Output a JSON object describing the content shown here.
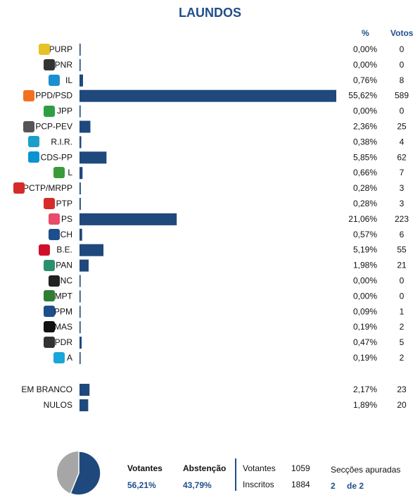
{
  "title": "LAUNDOS",
  "headers": {
    "pct": "%",
    "votes": "Votos"
  },
  "colors": {
    "bar": "#1f497d",
    "title": "#1f4e8c",
    "pie_votantes": "#1f497d",
    "pie_abstencao": "#a6a6a6"
  },
  "chart_data": {
    "type": "bar",
    "orientation": "horizontal",
    "categories": [
      "PURP",
      "PNR",
      "IL",
      "PPD/PSD",
      "JPP",
      "PCP-PEV",
      "R.I.R.",
      "CDS-PP",
      "L",
      "PCTP/MRPP",
      "PTP",
      "PS",
      "CH",
      "B.E.",
      "PAN",
      "NC",
      "MPT",
      "PPM",
      "MAS",
      "PDR",
      "A"
    ],
    "percent_labels": [
      "0,00%",
      "0,00%",
      "0,76%",
      "55,62%",
      "0,00%",
      "2,36%",
      "0,38%",
      "5,85%",
      "0,66%",
      "0,28%",
      "0,28%",
      "21,06%",
      "0,57%",
      "5,19%",
      "1,98%",
      "0,00%",
      "0,00%",
      "0,09%",
      "0,19%",
      "0,47%",
      "0,19%"
    ],
    "values": [
      0.0,
      0.0,
      0.76,
      55.62,
      0.0,
      2.36,
      0.38,
      5.85,
      0.66,
      0.28,
      0.28,
      21.06,
      0.57,
      5.19,
      1.98,
      0.0,
      0.0,
      0.09,
      0.19,
      0.47,
      0.19
    ],
    "votes": [
      0,
      0,
      8,
      589,
      0,
      25,
      4,
      62,
      7,
      3,
      3,
      223,
      6,
      55,
      21,
      0,
      0,
      1,
      2,
      5,
      2
    ],
    "extra_categories": [
      "EM BRANCO",
      "NULOS"
    ],
    "extra_percent_labels": [
      "2,17%",
      "1,89%"
    ],
    "extra_values": [
      2.17,
      1.89
    ],
    "extra_votes": [
      23,
      20
    ]
  },
  "party_icon_colors": [
    "#e6c229",
    "#333333",
    "#1b8fd1",
    "#f37021",
    "#2e9e44",
    "#555555",
    "#1aa0c8",
    "#0a93d1",
    "#3a9b3a",
    "#d62b2b",
    "#d62b2b",
    "#e94b6b",
    "#1f4e8c",
    "#d0102a",
    "#2a8f6f",
    "#222222",
    "#2e7d32",
    "#1f4e8c",
    "#111111",
    "#333333",
    "#19a6d8"
  ],
  "party_icon_names": [
    "sun-icon",
    "flame-icon",
    "il-icon",
    "arrow-icon",
    "jpp-icon",
    "hammer-sickle-icon",
    "rir-icon",
    "cds-icon",
    "flower-icon",
    "pctp-icon",
    "ptp-icon",
    "ps-rose-icon",
    "ch-icon",
    "be-star-icon",
    "pan-icon",
    "nc-icon",
    "clover-icon",
    "ppm-icon",
    "mas-icon",
    "stars-icon",
    "alianca-icon"
  ],
  "footer": {
    "votantes_label": "Votantes",
    "votantes_pct": "56,21%",
    "abstencao_label": "Abstenção",
    "abstencao_pct": "43,79%",
    "votantes_count_label": "Votantes",
    "votantes_count": "1059",
    "inscritos_label": "Inscritos",
    "inscritos_count": "1884",
    "seccoes_label": "Secções apuradas",
    "seccoes_done": "2",
    "seccoes_total": "de 2",
    "pie_votantes_fraction": 0.5621
  }
}
